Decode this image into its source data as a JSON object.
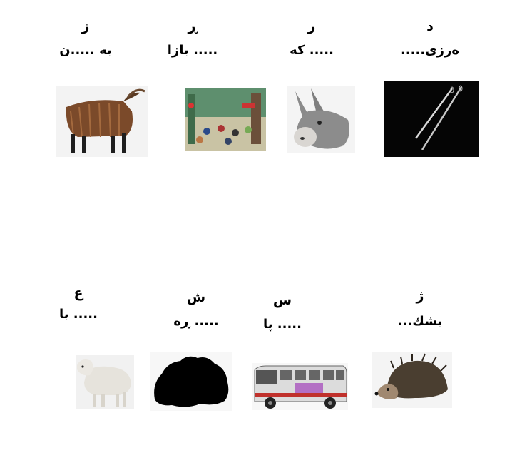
{
  "row1": [
    {
      "letter": "د",
      "word": ".....ەرزی",
      "picture": "needles-image"
    },
    {
      "letter": "ر",
      "word": "كه .....",
      "picture": "donkey-image"
    },
    {
      "letter": "ڕ",
      "word": "بازا .....",
      "picture": "bazaar-image"
    },
    {
      "letter": "ز",
      "word": "بە .....ن",
      "picture": "goat-image"
    }
  ],
  "row2": [
    {
      "letter": "ژ",
      "word": "...يشك",
      "picture": "hedgehog-image"
    },
    {
      "letter": "س",
      "word": "پا .....",
      "picture": "bus-image"
    },
    {
      "letter": "ش",
      "word": "ڕە .....",
      "picture": "black-blob-image"
    },
    {
      "letter": "ع",
      "word": "با .....",
      "picture": "lamb-image"
    }
  ]
}
